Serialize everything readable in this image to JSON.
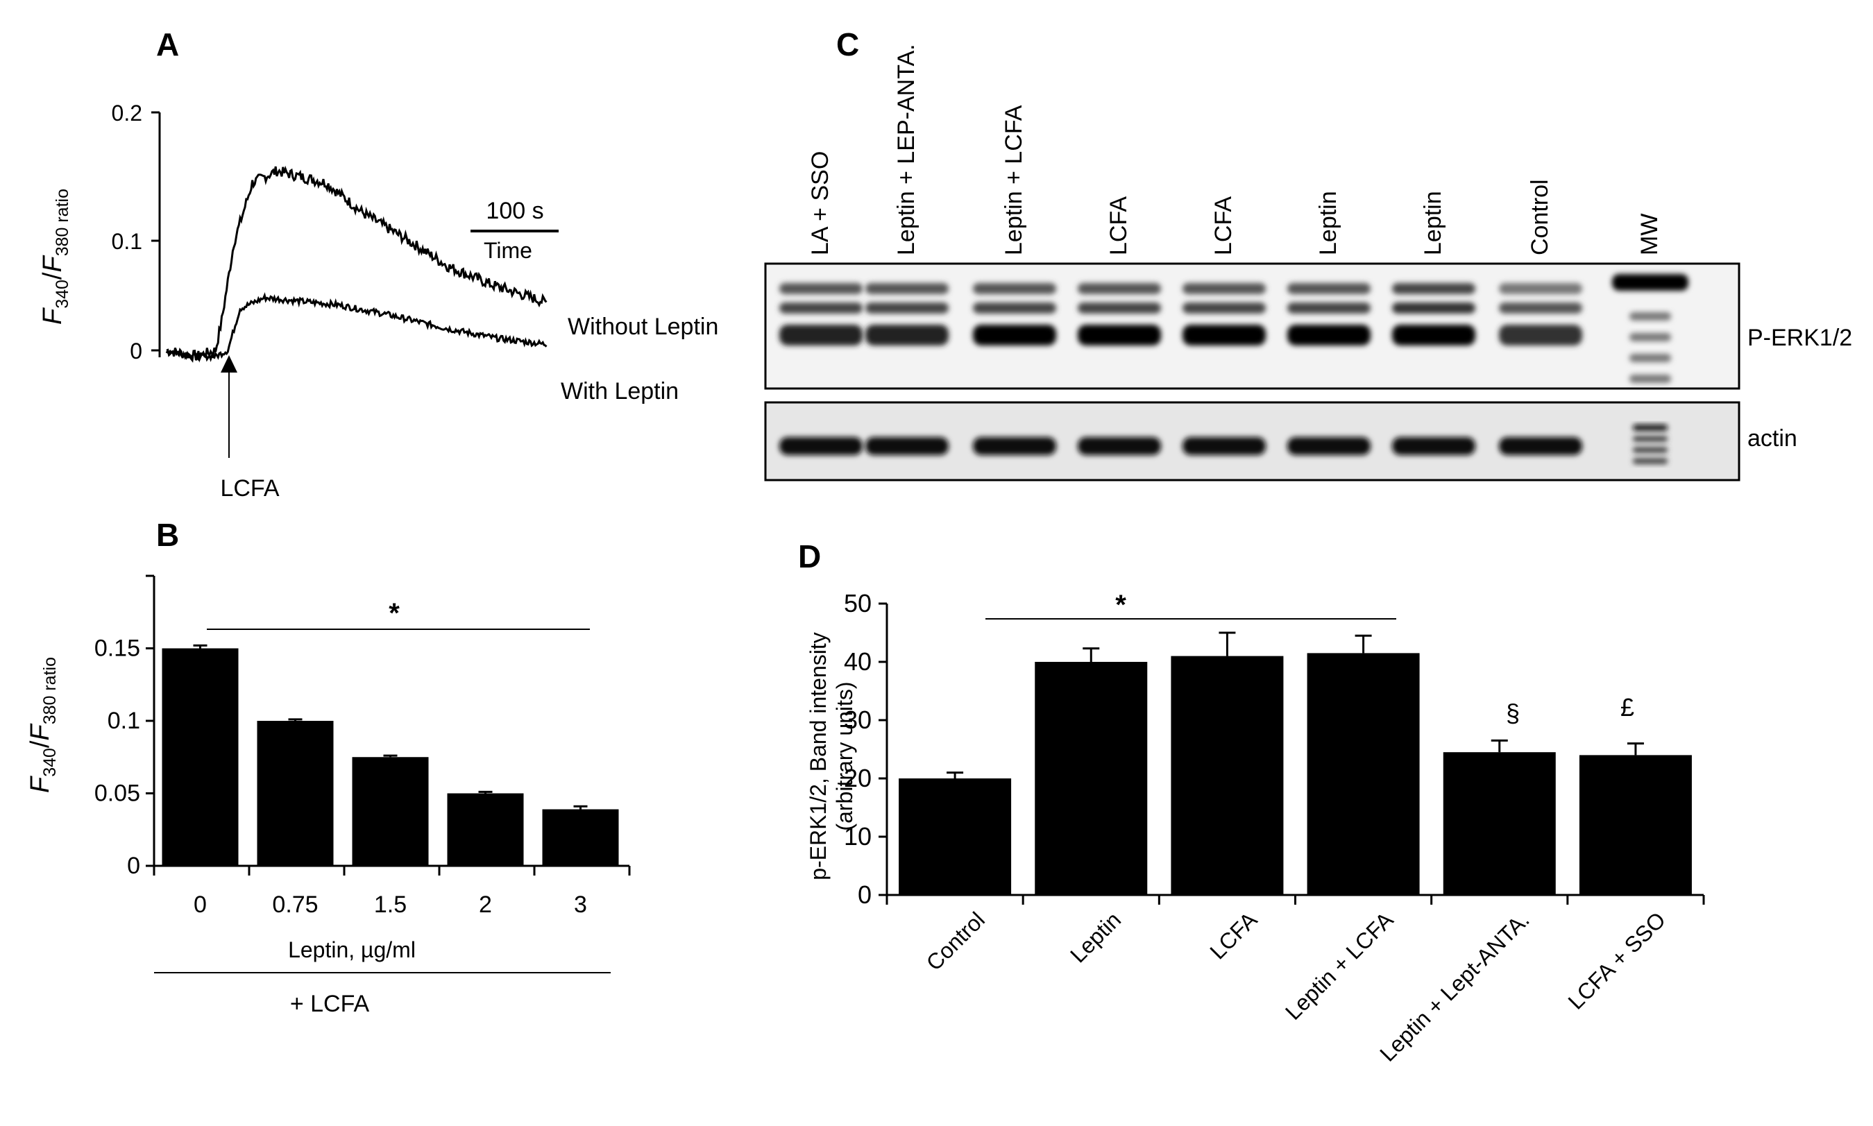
{
  "panels": {
    "A": {
      "label": "A",
      "ylabel": {
        "main1": "F",
        "sub1": "340",
        "mid": "/",
        "main2": "F",
        "sub2": "380 ratio"
      },
      "yticks": [
        "0.2",
        "0.1",
        "0"
      ],
      "scale_bar_text": "100 s",
      "time_label": "Time",
      "arrow_label": "LCFA",
      "trace_labels": [
        "Without Leptin",
        "With Leptin"
      ]
    },
    "B": {
      "label": "B",
      "ylabel": {
        "main1": "F",
        "sub1": "340",
        "mid": "/",
        "main2": "F",
        "sub2": "380 ratio"
      },
      "xlabel": "Leptin, µg/ml",
      "group_label": "+ LCFA",
      "significance": "*"
    },
    "C": {
      "label": "C",
      "lanes": [
        "LA + SSO",
        "Leptin + LEP-ANTA.",
        "Leptin + LCFA",
        "LCFA",
        "LCFA",
        "Leptin",
        "Leptin",
        "Control",
        "MW"
      ],
      "blot_labels": [
        "P-ERK1/2",
        "actin"
      ]
    },
    "D": {
      "label": "D",
      "ylabel_line1": "p-ERK1/2, Band intensity",
      "ylabel_line2": "(arbitrary units)",
      "significance": "*",
      "markers": [
        "§",
        "£"
      ]
    }
  },
  "chart_data": [
    {
      "panel": "A",
      "type": "line",
      "title": "",
      "xlabel": "Time",
      "ylabel": "F340/F380 ratio",
      "ylim": [
        0,
        0.2
      ],
      "x_unit": "s",
      "event": {
        "label": "LCFA",
        "x": 80
      },
      "series": [
        {
          "name": "Without Leptin",
          "x": [
            0,
            50,
            80,
            90,
            110,
            140,
            180,
            260,
            320,
            400,
            460,
            530,
            620
          ],
          "y": [
            0.0,
            -0.005,
            0.0,
            0.025,
            0.09,
            0.14,
            0.15,
            0.14,
            0.115,
            0.09,
            0.07,
            0.055,
            0.04
          ]
        },
        {
          "name": "With Leptin",
          "x": [
            0,
            50,
            80,
            100,
            120,
            160,
            200,
            280,
            360,
            460,
            540,
            620
          ],
          "y": [
            0.0,
            -0.005,
            -0.005,
            0.0,
            0.035,
            0.044,
            0.042,
            0.038,
            0.03,
            0.018,
            0.01,
            0.005
          ]
        }
      ]
    },
    {
      "panel": "B",
      "type": "bar",
      "title": "",
      "xlabel": "Leptin, µg/ml",
      "ylabel": "F340/F380 ratio",
      "categories": [
        "0",
        "0.75",
        "1.5",
        "2",
        "3"
      ],
      "values": [
        0.15,
        0.1,
        0.075,
        0.05,
        0.039
      ],
      "errors": [
        0.002,
        0.001,
        0.001,
        0.001,
        0.002
      ],
      "ylim": [
        0,
        0.2
      ],
      "yticks": [
        0,
        0.05,
        0.1,
        0.15
      ]
    },
    {
      "panel": "D",
      "type": "bar",
      "title": "",
      "xlabel": "",
      "ylabel": "p-ERK1/2, Band intensity (arbitrary units)",
      "categories": [
        "Control",
        "Leptin",
        "LCFA",
        "Leptin + LCFA",
        "Leptin + Lept-ANTA.",
        "LCFA + SSO"
      ],
      "values": [
        20,
        40,
        41,
        41.5,
        24.5,
        24
      ],
      "errors": [
        1,
        2.3,
        4,
        3,
        2,
        2
      ],
      "ylim": [
        0,
        50
      ],
      "yticks": [
        0,
        10,
        20,
        30,
        40,
        50
      ]
    }
  ]
}
